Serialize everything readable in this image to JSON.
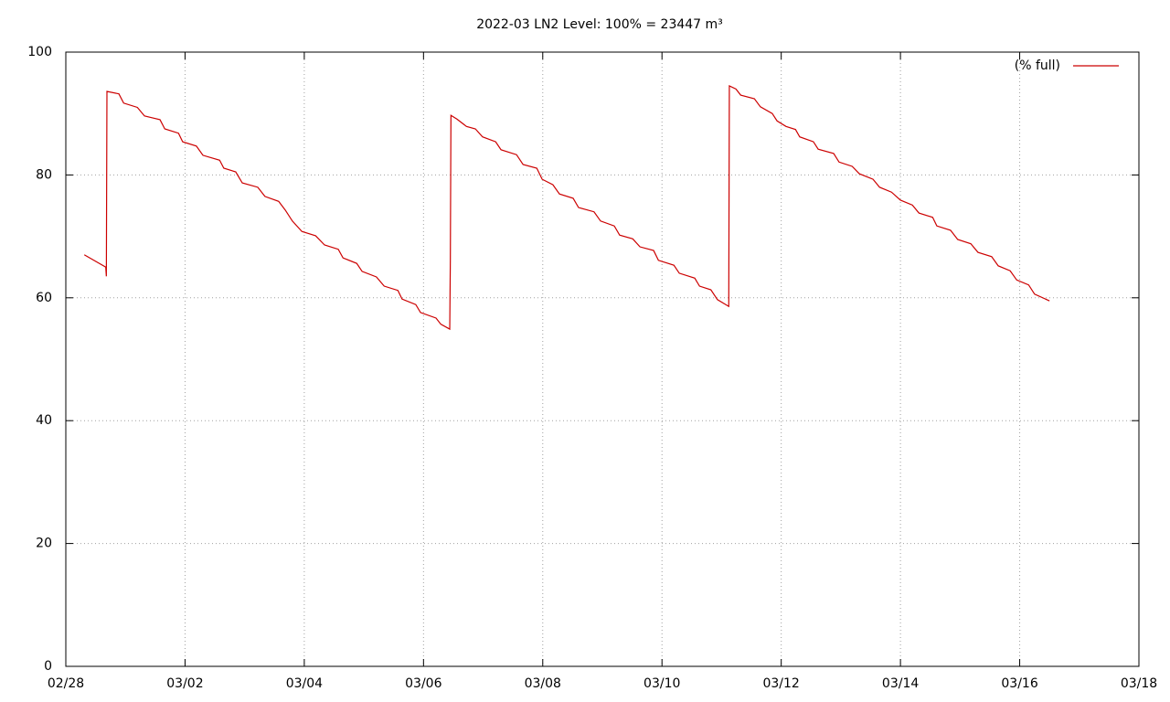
{
  "chart_data": {
    "type": "line",
    "title": "2022-03 LN2 Level: 100% = 23447 m³",
    "xlim": [
      0,
      18
    ],
    "xticks": [
      {
        "value": 0,
        "label": "02/28"
      },
      {
        "value": 2,
        "label": "03/02"
      },
      {
        "value": 4,
        "label": "03/04"
      },
      {
        "value": 6,
        "label": "03/06"
      },
      {
        "value": 8,
        "label": "03/08"
      },
      {
        "value": 10,
        "label": "03/10"
      },
      {
        "value": 12,
        "label": "03/12"
      },
      {
        "value": 14,
        "label": "03/14"
      },
      {
        "value": 16,
        "label": "03/16"
      },
      {
        "value": 18,
        "label": "03/18"
      }
    ],
    "ylim": [
      0,
      100
    ],
    "yticks": [
      0,
      20,
      40,
      60,
      80,
      100
    ],
    "grid": true,
    "legend": "top-right",
    "x": [
      0.31,
      0.67,
      0.68,
      0.69,
      0.89,
      0.97,
      1.2,
      1.32,
      1.58,
      1.66,
      1.89,
      1.96,
      2.19,
      2.3,
      2.58,
      2.65,
      2.85,
      2.96,
      3.22,
      3.34,
      3.57,
      3.68,
      3.8,
      3.96,
      4.19,
      4.34,
      4.57,
      4.65,
      4.88,
      4.97,
      5.21,
      5.34,
      5.57,
      5.64,
      5.87,
      5.95,
      6.21,
      6.29,
      6.44,
      6.45,
      6.46,
      6.56,
      6.72,
      6.87,
      6.99,
      7.21,
      7.3,
      7.56,
      7.67,
      7.9,
      7.99,
      8.17,
      8.28,
      8.51,
      8.6,
      8.86,
      8.97,
      9.2,
      9.29,
      9.51,
      9.63,
      9.86,
      9.94,
      10.2,
      10.29,
      10.55,
      10.63,
      10.82,
      10.93,
      11.12,
      11.13,
      11.24,
      11.32,
      11.55,
      11.65,
      11.85,
      11.93,
      12.08,
      12.24,
      12.31,
      12.54,
      12.62,
      12.88,
      12.97,
      13.19,
      13.31,
      13.54,
      13.65,
      13.85,
      14.0,
      14.2,
      14.31,
      14.54,
      14.61,
      14.84,
      14.96,
      15.18,
      15.3,
      15.53,
      15.64,
      15.84,
      15.95,
      16.15,
      16.25,
      16.5
    ],
    "series": [
      {
        "name": "(% full)",
        "color": "#cc0000",
        "values": [
          67.0,
          65.0,
          63.5,
          93.6,
          93.2,
          91.7,
          91.0,
          89.6,
          89.0,
          87.5,
          86.8,
          85.4,
          84.7,
          83.2,
          82.4,
          81.1,
          80.5,
          78.7,
          78.0,
          76.5,
          75.7,
          74.3,
          72.5,
          70.8,
          70.1,
          68.6,
          67.9,
          66.5,
          65.6,
          64.3,
          63.4,
          61.9,
          61.2,
          59.8,
          58.9,
          57.6,
          56.7,
          55.7,
          54.9,
          66.2,
          89.7,
          89.1,
          87.9,
          87.5,
          86.2,
          85.4,
          84.1,
          83.3,
          81.7,
          81.1,
          79.3,
          78.4,
          76.9,
          76.2,
          74.7,
          74.0,
          72.5,
          71.7,
          70.2,
          69.6,
          68.3,
          67.7,
          66.1,
          65.3,
          64.0,
          63.2,
          61.9,
          61.3,
          59.7,
          58.6,
          94.5,
          94.0,
          93.0,
          92.4,
          91.1,
          90.0,
          88.8,
          87.9,
          87.4,
          86.2,
          85.4,
          84.2,
          83.5,
          82.1,
          81.4,
          80.2,
          79.3,
          78.0,
          77.2,
          75.9,
          75.1,
          73.8,
          73.1,
          71.7,
          71.0,
          69.5,
          68.8,
          67.4,
          66.7,
          65.2,
          64.4,
          62.9,
          62.1,
          60.6,
          59.5
        ]
      }
    ]
  }
}
